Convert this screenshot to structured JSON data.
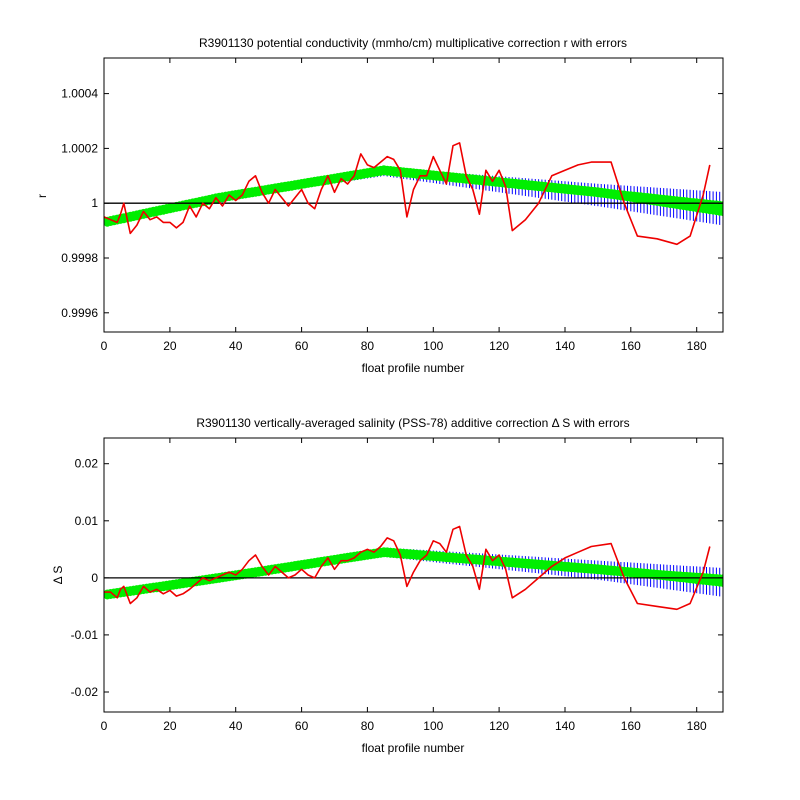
{
  "chart_data": [
    {
      "type": "line",
      "title": "R3901130 potential conductivity (mmho/cm) multiplicative correction r with errors",
      "xlabel": "float profile number",
      "ylabel": "r",
      "xlim": [
        0,
        188
      ],
      "ylim": [
        0.99953,
        1.00053
      ],
      "xticks": [
        0,
        20,
        40,
        60,
        80,
        100,
        120,
        140,
        160,
        180
      ],
      "xtick_labels": [
        "0",
        "20",
        "40",
        "60",
        "80",
        "100",
        "120",
        "140",
        "160",
        "180"
      ],
      "yticks": [
        0.9996,
        0.9998,
        1.0,
        1.0002,
        1.0004
      ],
      "ytick_labels": [
        "0.9996",
        "0.9998",
        "1",
        "1.0002",
        "1.0004"
      ],
      "grid": false,
      "reference_line": 1.0,
      "colors": {
        "reference": "#000000",
        "error_band": "#0000ff",
        "fit": "#00ee00",
        "raw": "#ee0000"
      },
      "series": [
        {
          "role": "raw",
          "x": [
            0,
            2,
            4,
            5,
            6,
            8,
            10,
            12,
            14,
            16,
            18,
            20,
            22,
            24,
            26,
            28,
            30,
            32,
            34,
            36,
            38,
            40,
            42,
            44,
            46,
            48,
            50,
            52,
            54,
            56,
            58,
            60,
            62,
            64,
            66,
            68,
            70,
            72,
            74,
            76,
            78,
            80,
            82,
            84,
            86,
            88,
            90,
            92,
            94,
            96,
            98,
            100,
            102,
            104,
            106,
            108,
            110,
            112,
            114,
            116,
            118,
            120,
            122,
            124,
            128,
            132,
            136,
            140,
            144,
            148,
            154,
            158,
            162,
            168,
            174,
            178,
            182,
            184
          ],
          "y": [
            0.99995,
            0.99994,
            0.99993,
            0.99996,
            1.0,
            0.99989,
            0.99992,
            0.99997,
            0.99994,
            0.99995,
            0.99993,
            0.99993,
            0.99991,
            0.99993,
            0.99999,
            0.99995,
            1.0,
            0.99998,
            1.00002,
            0.99999,
            1.00003,
            1.00001,
            1.00003,
            1.00008,
            1.0001,
            1.00004,
            1.0,
            1.00005,
            1.00002,
            0.99999,
            1.00002,
            1.00005,
            1.0,
            0.99998,
            1.00005,
            1.0001,
            1.00004,
            1.00009,
            1.00007,
            1.0001,
            1.00018,
            1.00014,
            1.00013,
            1.00015,
            1.00017,
            1.00016,
            1.00012,
            0.99995,
            1.00005,
            1.0001,
            1.0001,
            1.00017,
            1.00012,
            1.00007,
            1.00021,
            1.00022,
            1.0001,
            1.00005,
            0.99996,
            1.00012,
            1.00008,
            1.00012,
            1.00006,
            0.9999,
            0.99994,
            1.0,
            1.0001,
            1.00012,
            1.00014,
            1.00015,
            1.00015,
            1.0,
            0.99988,
            0.99987,
            0.99985,
            0.99988,
            1.00003,
            1.00014
          ]
        },
        {
          "role": "fit",
          "x": [
            0,
            35,
            85,
            150,
            188
          ],
          "y": [
            0.99993,
            1.00002,
            1.00012,
            1.00004,
            0.99998
          ]
        },
        {
          "role": "error_upper",
          "x": [
            0,
            35,
            85,
            150,
            188
          ],
          "y": [
            0.99993,
            1.00002,
            1.00012,
            1.00006,
            1.00003
          ]
        },
        {
          "role": "error_lower",
          "x": [
            0,
            35,
            85,
            150,
            188
          ],
          "y": [
            0.99993,
            1.00002,
            1.00011,
            1.0,
            0.99993
          ]
        }
      ]
    },
    {
      "type": "line",
      "title": "R3901130 vertically-averaged salinity (PSS-78) additive correction Δ S with errors",
      "xlabel": "float profile number",
      "ylabel": "Δ S",
      "xlim": [
        0,
        188
      ],
      "ylim": [
        -0.0235,
        0.0245
      ],
      "xticks": [
        0,
        20,
        40,
        60,
        80,
        100,
        120,
        140,
        160,
        180
      ],
      "xtick_labels": [
        "0",
        "20",
        "40",
        "60",
        "80",
        "100",
        "120",
        "140",
        "160",
        "180"
      ],
      "yticks": [
        -0.02,
        -0.01,
        0,
        0.01,
        0.02
      ],
      "ytick_labels": [
        "-0.02",
        "-0.01",
        "0",
        "0.01",
        "0.02"
      ],
      "grid": false,
      "reference_line": 0,
      "colors": {
        "reference": "#000000",
        "error_band": "#0000ff",
        "fit": "#00ee00",
        "raw": "#ee0000"
      },
      "series": [
        {
          "role": "raw",
          "x": [
            0,
            2,
            4,
            5,
            6,
            8,
            10,
            12,
            14,
            16,
            18,
            20,
            22,
            24,
            26,
            28,
            30,
            32,
            34,
            36,
            38,
            40,
            42,
            44,
            46,
            48,
            50,
            52,
            54,
            56,
            58,
            60,
            62,
            64,
            66,
            68,
            70,
            72,
            74,
            76,
            78,
            80,
            82,
            84,
            86,
            88,
            90,
            92,
            94,
            96,
            98,
            100,
            102,
            104,
            106,
            108,
            110,
            112,
            114,
            116,
            118,
            120,
            122,
            124,
            128,
            132,
            136,
            140,
            144,
            148,
            154,
            158,
            162,
            168,
            174,
            178,
            182,
            184
          ],
          "y": [
            -0.0025,
            -0.0025,
            -0.0035,
            -0.002,
            -0.0015,
            -0.0045,
            -0.0035,
            -0.0015,
            -0.0025,
            -0.002,
            -0.0028,
            -0.0022,
            -0.0032,
            -0.0028,
            -0.002,
            -0.001,
            0.0,
            -0.0005,
            0.0,
            0.0005,
            0.001,
            0.0005,
            0.0015,
            0.003,
            0.004,
            0.002,
            0.0005,
            0.002,
            0.001,
            0.0,
            0.0005,
            0.0015,
            0.0005,
            0.0,
            0.002,
            0.0035,
            0.0015,
            0.003,
            0.003,
            0.0035,
            0.0045,
            0.005,
            0.0045,
            0.0055,
            0.007,
            0.0065,
            0.004,
            -0.0015,
            0.001,
            0.003,
            0.004,
            0.0065,
            0.006,
            0.0045,
            0.0085,
            0.009,
            0.004,
            0.002,
            -0.002,
            0.005,
            0.003,
            0.004,
            0.0015,
            -0.0035,
            -0.002,
            0.0,
            0.002,
            0.0035,
            0.0045,
            0.0055,
            0.006,
            0.0,
            -0.0045,
            -0.005,
            -0.0055,
            -0.0045,
            0.001,
            0.0055
          ]
        },
        {
          "role": "fit",
          "x": [
            0,
            35,
            85,
            150,
            188
          ],
          "y": [
            -0.003,
            0.0,
            0.0045,
            0.0015,
            -0.0005
          ]
        },
        {
          "role": "error_upper",
          "x": [
            0,
            35,
            85,
            150,
            188
          ],
          "y": [
            -0.003,
            0.0,
            0.0048,
            0.0025,
            0.0012
          ]
        },
        {
          "role": "error_lower",
          "x": [
            0,
            35,
            85,
            150,
            188
          ],
          "y": [
            -0.003,
            0.0,
            0.0042,
            0.0002,
            -0.0028
          ]
        }
      ]
    }
  ]
}
